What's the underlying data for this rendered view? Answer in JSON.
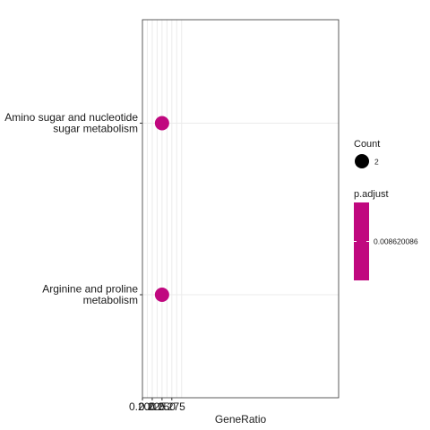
{
  "chart_data": {
    "type": "scatter",
    "categories": [
      [
        "Amino sugar and nucleotide",
        "sugar metabolism"
      ],
      [
        "Arginine and proline",
        "metabolism"
      ]
    ],
    "points": [
      {
        "category_index": 0,
        "x": 0.25,
        "count": 2,
        "p_adjust": 0.008620086
      },
      {
        "category_index": 1,
        "x": 0.25,
        "count": 2,
        "p_adjust": 0.008620086
      }
    ],
    "xlabel": "GeneRatio",
    "ylabel": "",
    "xlim": [
      0.2,
      0.3
    ],
    "xticks": [
      0.2,
      0.225,
      0.25,
      0.275
    ],
    "xtick_labels": [
      "0.200",
      "0.225",
      "0.250",
      "0.275"
    ],
    "grid": true,
    "point_color": "#c0087f",
    "legend": {
      "placement": "right",
      "size_title": "Count",
      "size_value": "2",
      "color_title": "p.adjust",
      "color_value": "0.008620086",
      "color": "#c0087f"
    }
  }
}
